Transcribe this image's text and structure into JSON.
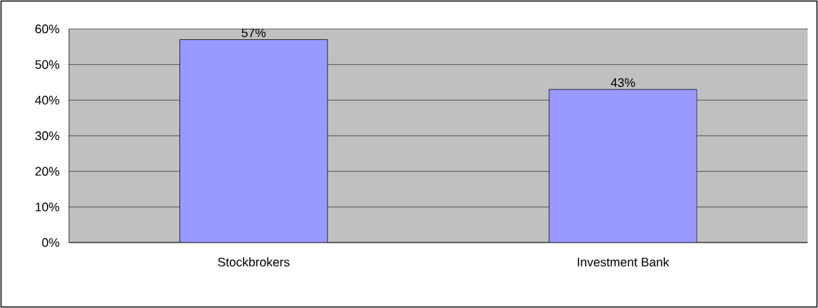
{
  "chart_data": {
    "type": "bar",
    "categories": [
      "Stockbrokers",
      "Investment Bank"
    ],
    "values": [
      57,
      43
    ],
    "value_labels": [
      "57%",
      "43%"
    ],
    "color": "#9999ff",
    "ylim": [
      0,
      60
    ],
    "yticks": [
      {
        "value": 0,
        "label": "0%"
      },
      {
        "value": 10,
        "label": "10%"
      },
      {
        "value": 20,
        "label": "20%"
      },
      {
        "value": 30,
        "label": "30%"
      },
      {
        "value": 40,
        "label": "40%"
      },
      {
        "value": 50,
        "label": "50%"
      },
      {
        "value": 60,
        "label": "60%"
      }
    ],
    "grid": "y"
  }
}
